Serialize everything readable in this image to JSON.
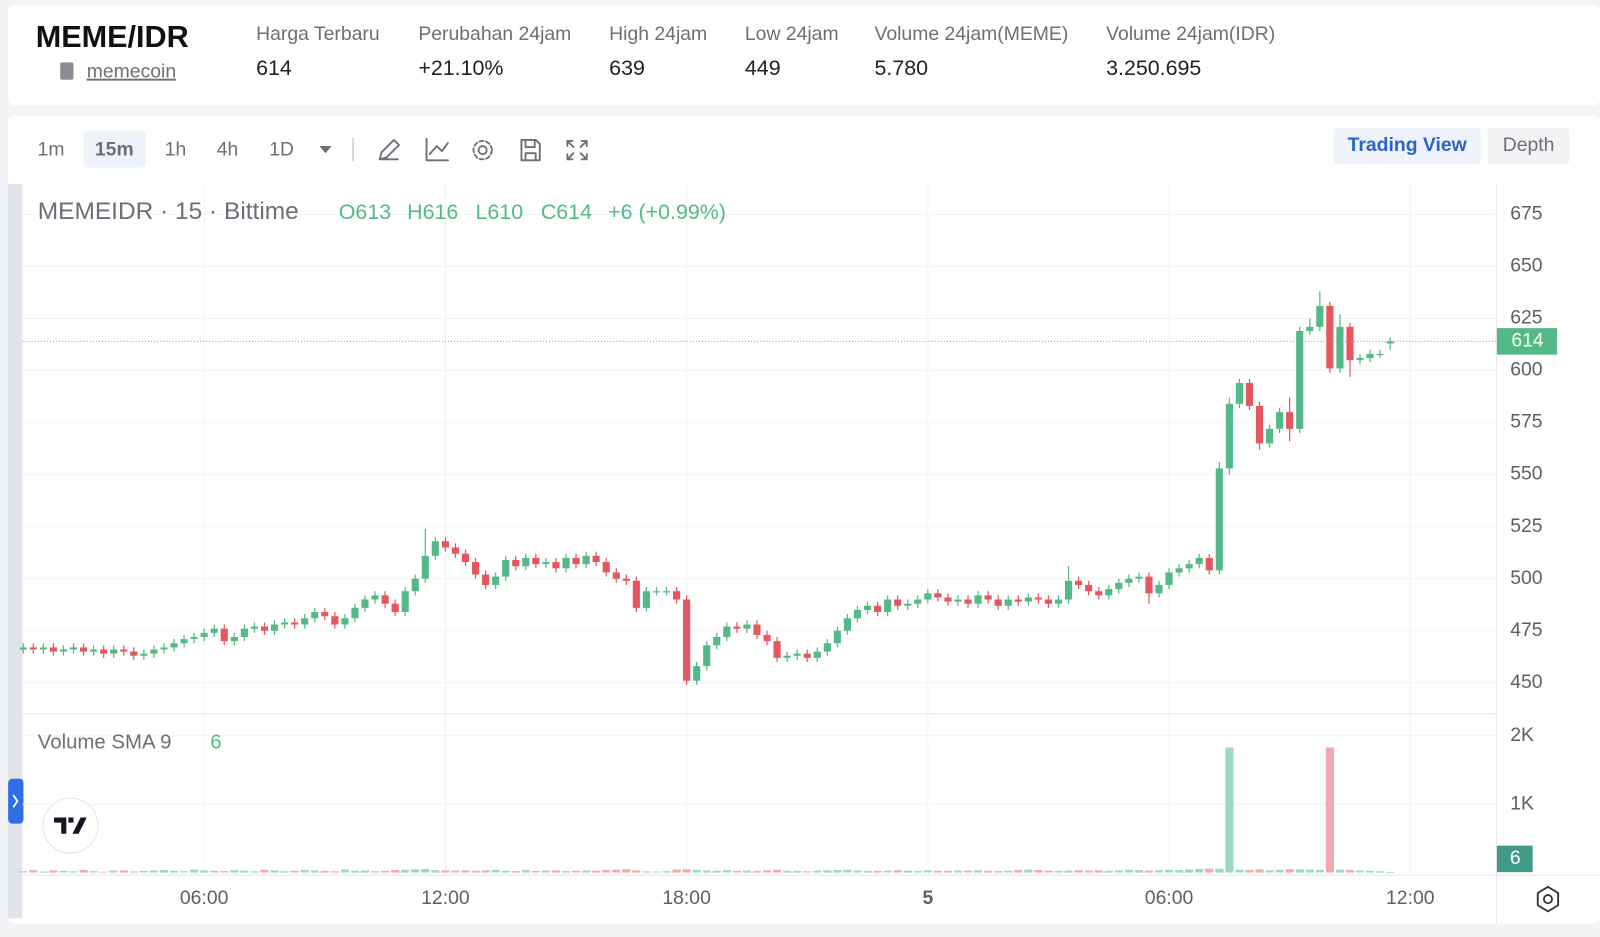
{
  "header": {
    "pair": "MEME/IDR",
    "coin": "memecoin",
    "stats": [
      {
        "label": "Harga Terbaru",
        "value": "614"
      },
      {
        "label": "Perubahan 24jam",
        "value": "+21.10%"
      },
      {
        "label": "High 24jam",
        "value": "639"
      },
      {
        "label": "Low 24jam",
        "value": "449"
      },
      {
        "label": "Volume 24jam(MEME)",
        "value": "5.780"
      },
      {
        "label": "Volume 24jam(IDR)",
        "value": "3.250.695"
      }
    ]
  },
  "toolbar": {
    "intervals": [
      "1m",
      "15m",
      "1h",
      "4h",
      "1D"
    ],
    "views": [
      "Trading View",
      "Depth"
    ]
  },
  "chart_data": [
    {
      "type": "candlestick",
      "title": "MEMEIDR · 15 · Bittime",
      "legend_values": [
        "O613",
        "H616",
        "L610",
        "C614",
        "+6 (+0.99%)"
      ],
      "up_color": "#53b987",
      "down_color": "#e5575f",
      "x": [
        1.5,
        1.75,
        2,
        2.25,
        2.5,
        2.75,
        3,
        3.25,
        3.5,
        3.75,
        4,
        4.25,
        4.5,
        4.75,
        5,
        5.25,
        5.5,
        5.75,
        6,
        6.25,
        6.5,
        6.75,
        7,
        7.25,
        7.5,
        7.75,
        8,
        8.25,
        8.5,
        8.75,
        9,
        9.25,
        9.5,
        9.75,
        10,
        10.25,
        10.5,
        10.75,
        11,
        11.25,
        11.5,
        11.75,
        12,
        12.25,
        12.5,
        12.75,
        13,
        13.25,
        13.5,
        13.75,
        14,
        14.25,
        14.5,
        14.75,
        15,
        15.25,
        15.5,
        15.75,
        16,
        16.25,
        16.5,
        16.75,
        17,
        17.25,
        17.5,
        17.75,
        18,
        18.25,
        18.5,
        18.75,
        19,
        19.25,
        19.5,
        19.75,
        20,
        20.25,
        20.5,
        20.75,
        21,
        21.25,
        21.5,
        21.75,
        22,
        22.25,
        22.5,
        22.75,
        23,
        23.25,
        23.5,
        23.75,
        24,
        24.25,
        24.5,
        24.75,
        25,
        25.25,
        25.5,
        25.75,
        26,
        26.25,
        26.5,
        26.75,
        27,
        27.25,
        27.5,
        27.75,
        28,
        28.25,
        28.5,
        28.75,
        29,
        29.25,
        29.5,
        29.75,
        30,
        30.25,
        30.5,
        30.75,
        31,
        31.25,
        31.5,
        31.75,
        32,
        32.25,
        32.5,
        32.75,
        33,
        33.25,
        33.5,
        33.75,
        34,
        34.25,
        34.5,
        34.75,
        35,
        35.25,
        35.5
      ],
      "open": [
        466,
        467,
        466,
        467,
        465,
        466,
        467,
        465,
        466,
        464,
        466,
        465,
        463,
        464,
        466,
        467,
        469,
        471,
        472,
        474,
        476,
        470,
        472,
        476,
        477,
        475,
        478,
        479,
        478,
        481,
        484,
        482,
        478,
        481,
        486,
        490,
        492,
        488,
        484,
        494,
        500,
        511,
        518,
        515,
        512,
        508,
        502,
        497,
        501,
        509,
        506,
        510,
        507,
        508,
        505,
        510,
        507,
        511,
        508,
        503,
        500,
        499,
        486,
        494,
        494,
        494,
        490,
        451,
        458,
        468,
        472,
        477,
        476,
        478,
        473,
        470,
        462,
        463,
        464,
        462,
        465,
        469,
        475,
        481,
        485,
        487,
        484,
        490,
        487,
        488,
        490,
        493,
        491,
        489,
        490,
        488,
        492,
        490,
        487,
        490,
        489,
        491,
        490,
        488,
        490,
        499,
        497,
        494,
        492,
        495,
        498,
        500,
        501,
        493,
        497,
        503,
        505,
        507,
        510,
        504,
        553,
        584,
        594,
        583,
        565,
        572,
        580,
        572,
        619,
        621,
        631,
        601,
        621,
        605,
        606,
        608,
        613
      ],
      "high": [
        469,
        469,
        469,
        469,
        468,
        469,
        469,
        468,
        468,
        468,
        468,
        467,
        466,
        468,
        469,
        471,
        473,
        474,
        476,
        478,
        478,
        474,
        478,
        479,
        479,
        480,
        481,
        481,
        483,
        486,
        486,
        484,
        483,
        488,
        492,
        494,
        494,
        490,
        496,
        502,
        524,
        520,
        520,
        517,
        514,
        510,
        504,
        503,
        511,
        511,
        512,
        512,
        510,
        510,
        512,
        512,
        513,
        513,
        510,
        505,
        502,
        501,
        496,
        496,
        496,
        496,
        492,
        460,
        470,
        474,
        479,
        479,
        480,
        480,
        475,
        472,
        465,
        466,
        466,
        467,
        471,
        477,
        483,
        487,
        489,
        489,
        492,
        492,
        490,
        492,
        495,
        495,
        493,
        492,
        492,
        494,
        494,
        492,
        492,
        492,
        493,
        493,
        492,
        492,
        506,
        501,
        499,
        496,
        497,
        500,
        502,
        503,
        503,
        499,
        505,
        507,
        509,
        512,
        512,
        556,
        587,
        596,
        596,
        585,
        574,
        582,
        587,
        621,
        625,
        638,
        633,
        627,
        623,
        608,
        610,
        610,
        616
      ],
      "low": [
        464,
        464,
        464,
        463,
        463,
        464,
        463,
        463,
        462,
        462,
        463,
        461,
        461,
        462,
        464,
        465,
        467,
        469,
        470,
        472,
        468,
        468,
        470,
        474,
        473,
        473,
        476,
        476,
        476,
        479,
        480,
        476,
        476,
        479,
        484,
        488,
        486,
        482,
        482,
        492,
        498,
        509,
        513,
        510,
        506,
        500,
        495,
        495,
        499,
        504,
        504,
        505,
        505,
        503,
        503,
        505,
        505,
        506,
        501,
        498,
        497,
        484,
        484,
        492,
        492,
        488,
        449,
        449,
        456,
        466,
        470,
        474,
        474,
        471,
        468,
        460,
        460,
        461,
        460,
        460,
        463,
        467,
        473,
        479,
        483,
        482,
        482,
        485,
        485,
        486,
        488,
        489,
        487,
        487,
        486,
        486,
        488,
        485,
        485,
        487,
        487,
        488,
        486,
        486,
        488,
        495,
        492,
        490,
        490,
        493,
        496,
        498,
        488,
        491,
        495,
        501,
        503,
        505,
        502,
        502,
        550,
        582,
        581,
        562,
        563,
        570,
        566,
        570,
        617,
        619,
        599,
        599,
        597,
        603,
        604,
        606,
        610
      ],
      "close": [
        467,
        466,
        467,
        465,
        466,
        467,
        465,
        466,
        464,
        466,
        465,
        463,
        464,
        466,
        467,
        469,
        471,
        472,
        474,
        476,
        470,
        472,
        476,
        477,
        475,
        478,
        479,
        478,
        481,
        484,
        482,
        478,
        481,
        486,
        490,
        492,
        488,
        484,
        494,
        500,
        511,
        518,
        515,
        512,
        508,
        502,
        497,
        501,
        509,
        506,
        510,
        507,
        508,
        505,
        510,
        507,
        511,
        508,
        503,
        500,
        499,
        486,
        494,
        494,
        494,
        490,
        451,
        458,
        468,
        472,
        477,
        476,
        478,
        473,
        470,
        462,
        463,
        464,
        462,
        465,
        469,
        475,
        481,
        485,
        487,
        484,
        490,
        487,
        488,
        490,
        493,
        491,
        489,
        490,
        488,
        492,
        490,
        487,
        490,
        489,
        491,
        490,
        488,
        490,
        499,
        497,
        494,
        492,
        495,
        498,
        500,
        501,
        493,
        497,
        503,
        505,
        507,
        510,
        504,
        553,
        584,
        594,
        583,
        565,
        572,
        580,
        572,
        619,
        621,
        631,
        601,
        621,
        605,
        606,
        608,
        608,
        614
      ],
      "xlim": [
        1.48,
        38.13
      ],
      "xticks": [
        {
          "value": 6,
          "label": "06:00"
        },
        {
          "value": 12,
          "label": "12:00"
        },
        {
          "value": 18,
          "label": "18:00"
        },
        {
          "value": 24,
          "label": "5"
        },
        {
          "value": 30,
          "label": "06:00"
        },
        {
          "value": 36,
          "label": "12:00"
        }
      ],
      "ylim": [
        435.3,
        689.7
      ],
      "yticks": [
        450,
        475,
        500,
        525,
        550,
        575,
        600,
        625,
        650,
        675
      ],
      "last_price": 614,
      "grid": true
    },
    {
      "type": "bar",
      "title": "Volume SMA 9",
      "last_value": 6,
      "up_color": "#9dd8c4",
      "down_color": "#f2aab0",
      "values": [
        20,
        35,
        15,
        30,
        25,
        18,
        40,
        22,
        12,
        28,
        33,
        16,
        24,
        30,
        38,
        26,
        19,
        42,
        31,
        27,
        22,
        35,
        29,
        18,
        40,
        33,
        21,
        26,
        37,
        30,
        24,
        19,
        45,
        28,
        32,
        20,
        26,
        38,
        41,
        47,
        52,
        36,
        30,
        28,
        33,
        25,
        31,
        39,
        27,
        22,
        35,
        24,
        29,
        33,
        21,
        26,
        30,
        28,
        36,
        42,
        50,
        33,
        18,
        14,
        20,
        45,
        48,
        38,
        30,
        27,
        34,
        25,
        29,
        22,
        31,
        40,
        26,
        24,
        19,
        28,
        33,
        37,
        41,
        30,
        26,
        24,
        29,
        35,
        27,
        22,
        31,
        26,
        24,
        30,
        28,
        33,
        25,
        21,
        27,
        36,
        45,
        38,
        29,
        24,
        31,
        35,
        28,
        33,
        26,
        30,
        41,
        37,
        29,
        34,
        40,
        38,
        45,
        52,
        60,
        55,
        1830,
        40,
        35,
        48,
        33,
        39,
        51,
        46,
        42,
        38,
        1830,
        44,
        36,
        30,
        25,
        18,
        6
      ],
      "ylim": [
        0,
        2313
      ],
      "yticks": [
        {
          "value": 1000,
          "label": "1K"
        },
        {
          "value": 2000,
          "label": "2K"
        }
      ]
    }
  ]
}
